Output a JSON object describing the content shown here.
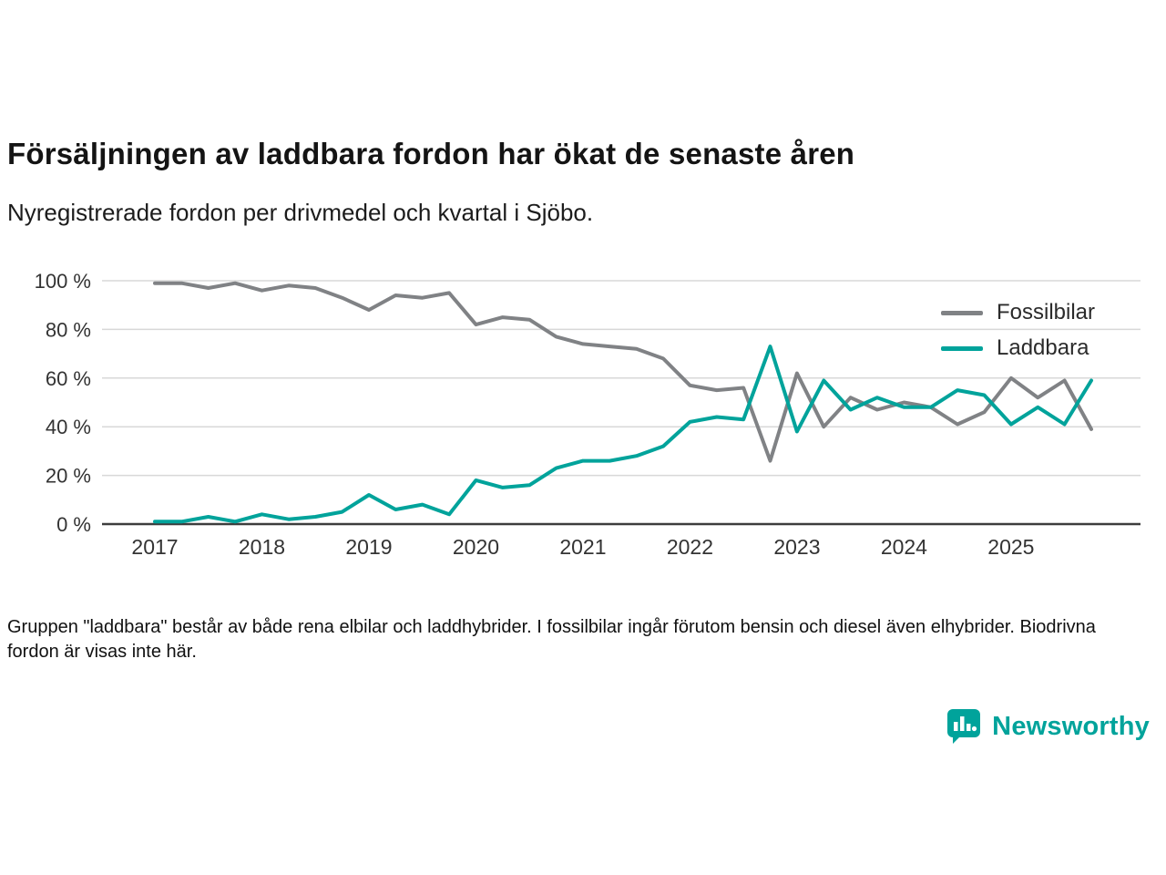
{
  "chart_data": {
    "type": "line",
    "title": "Försäljningen av laddbara fordon har ökat de senaste åren",
    "subtitle": "Nyregistrerade fordon per drivmedel och kvartal i Sjöbo.",
    "note": "Gruppen \"laddbara\" består av både rena elbilar och laddhybrider. I fossilbilar ingår förutom bensin och diesel även elhybrider. Biodrivna fordon är visas inte här.",
    "x_unit": "quarter",
    "x_start": "2017-Q1",
    "x_end": "2025-Q4",
    "x_ticklabels": [
      "2017",
      "2018",
      "2019",
      "2020",
      "2021",
      "2022",
      "2023",
      "2024",
      "2025"
    ],
    "y_ticks": [
      0,
      20,
      40,
      60,
      80,
      100
    ],
    "y_tick_suffix": " %",
    "ylim": [
      0,
      100
    ],
    "grid": true,
    "legend_position": "top-right",
    "series": [
      {
        "name": "Fossilbilar",
        "color": "#808285",
        "values": [
          99,
          99,
          97,
          99,
          96,
          98,
          97,
          93,
          88,
          94,
          93,
          95,
          82,
          85,
          84,
          77,
          74,
          73,
          72,
          68,
          57,
          55,
          56,
          26,
          62,
          40,
          52,
          47,
          50,
          48,
          41,
          46,
          60,
          52,
          59,
          39
        ]
      },
      {
        "name": "Laddbara",
        "color": "#00A39B",
        "values": [
          1,
          1,
          3,
          1,
          4,
          2,
          3,
          5,
          12,
          6,
          8,
          4,
          18,
          15,
          16,
          23,
          26,
          26,
          28,
          32,
          42,
          44,
          43,
          73,
          38,
          59,
          47,
          52,
          48,
          48,
          55,
          53,
          41,
          48,
          41,
          59
        ]
      }
    ]
  },
  "axis_style": {
    "grid_color": "#d8d8d8",
    "axis_color": "#3d3d3d",
    "tick_label_color": "#333333"
  },
  "logo": {
    "text": "Newsworthy",
    "color": "#00A39B"
  }
}
